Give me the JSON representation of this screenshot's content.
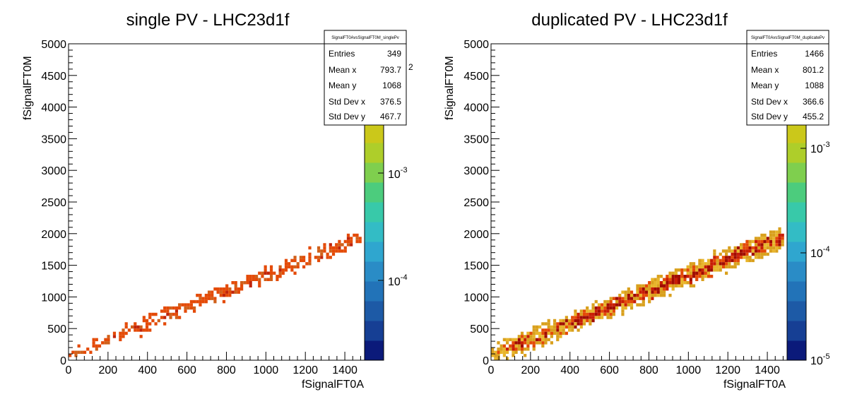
{
  "chart_data": [
    {
      "type": "heatmap",
      "title": "single PV - LHC23d1f",
      "xlabel": "fSignalFT0A",
      "ylabel": "fSignalFT0M",
      "xlim": [
        0,
        1500
      ],
      "ylim": [
        0,
        5000
      ],
      "x_ticks": [
        "0",
        "200",
        "400",
        "600",
        "800",
        "1000",
        "1200",
        "1400"
      ],
      "y_ticks": [
        "0",
        "500",
        "1000",
        "1500",
        "2000",
        "2500",
        "3000",
        "3500",
        "4000",
        "4500",
        "5000"
      ],
      "stats": {
        "name": "SignalFT0AvsSignalFT0M_singlePv",
        "rows": [
          {
            "label": "Entries",
            "value": "349"
          },
          {
            "label": "Mean x",
            "value": "793.7"
          },
          {
            "label": "Mean y",
            "value": "1068"
          },
          {
            "label": "Std Dev x",
            "value": "376.5"
          },
          {
            "label": "Std Dev y",
            "value": "467.7"
          }
        ]
      },
      "colorbar": {
        "scale": "log",
        "labels": [
          "10",
          "10"
        ],
        "exponents": [
          "-4",
          "-3"
        ],
        "clipped_exponent": "2"
      },
      "band": {
        "density": "sparse",
        "slope": 1.27,
        "intercept": 70,
        "spread": 180,
        "points": 349
      },
      "colors": [
        "#e44a07",
        "#d0601a",
        "#c0240a",
        "#e57a10"
      ]
    },
    {
      "type": "heatmap",
      "title": "duplicated PV - LHC23d1f",
      "xlabel": "fSignalFT0A",
      "ylabel": "fSignalFT0M",
      "xlim": [
        0,
        1500
      ],
      "ylim": [
        0,
        5000
      ],
      "x_ticks": [
        "0",
        "200",
        "400",
        "600",
        "800",
        "1000",
        "1200",
        "1400"
      ],
      "y_ticks": [
        "0",
        "500",
        "1000",
        "1500",
        "2000",
        "2500",
        "3000",
        "3500",
        "4000",
        "4500",
        "5000"
      ],
      "stats": {
        "name": "SignalFT0AvsSignalFT0M_duplicatePv",
        "rows": [
          {
            "label": "Entries",
            "value": "1466"
          },
          {
            "label": "Mean x",
            "value": "801.2"
          },
          {
            "label": "Mean y",
            "value": "1088"
          },
          {
            "label": "Std Dev x",
            "value": "366.6"
          },
          {
            "label": "Std Dev y",
            "value": "455.2"
          }
        ]
      },
      "colorbar": {
        "scale": "log",
        "labels": [
          "10",
          "10",
          "10"
        ],
        "exponents": [
          "-5",
          "-4",
          "-3"
        ]
      },
      "band": {
        "density": "dense",
        "slope": 1.27,
        "intercept": 70,
        "spread": 220,
        "points": 1466
      },
      "colors": [
        "#d9a01d",
        "#e44a07",
        "#c81d05",
        "#a00c02",
        "#e8b52a"
      ]
    }
  ]
}
